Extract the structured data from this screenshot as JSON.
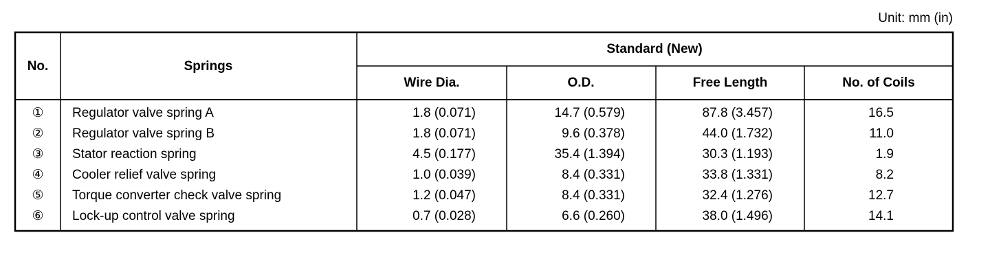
{
  "unit": "Unit: mm (in)",
  "table": {
    "header": {
      "no": "No.",
      "springs": "Springs",
      "standard": "Standard (New)",
      "columns": [
        "Wire Dia.",
        "O.D.",
        "Free Length",
        "No. of Coils"
      ]
    },
    "rows": [
      [
        "①",
        "Regulator valve spring A",
        "1.8 (0.071)",
        "14.7 (0.579)",
        "87.8 (3.457)",
        "16.5"
      ],
      [
        "②",
        "Regulator valve spring B",
        "1.8 (0.071)",
        "9.6 (0.378)",
        "44.0 (1.732)",
        "11.0"
      ],
      [
        "③",
        "Stator reaction spring",
        "4.5 (0.177)",
        "35.4 (1.394)",
        "30.3 (1.193)",
        "1.9"
      ],
      [
        "④",
        "Cooler relief valve spring",
        "1.0 (0.039)",
        "8.4 (0.331)",
        "33.8 (1.331)",
        "8.2"
      ],
      [
        "⑤",
        "Torque converter check valve spring",
        "1.2 (0.047)",
        "8.4 (0.331)",
        "32.4 (1.276)",
        "12.7"
      ],
      [
        "⑥",
        "Lock-up control valve spring",
        "0.7 (0.028)",
        "6.6 (0.260)",
        "38.0 (1.496)",
        "14.1"
      ]
    ]
  }
}
